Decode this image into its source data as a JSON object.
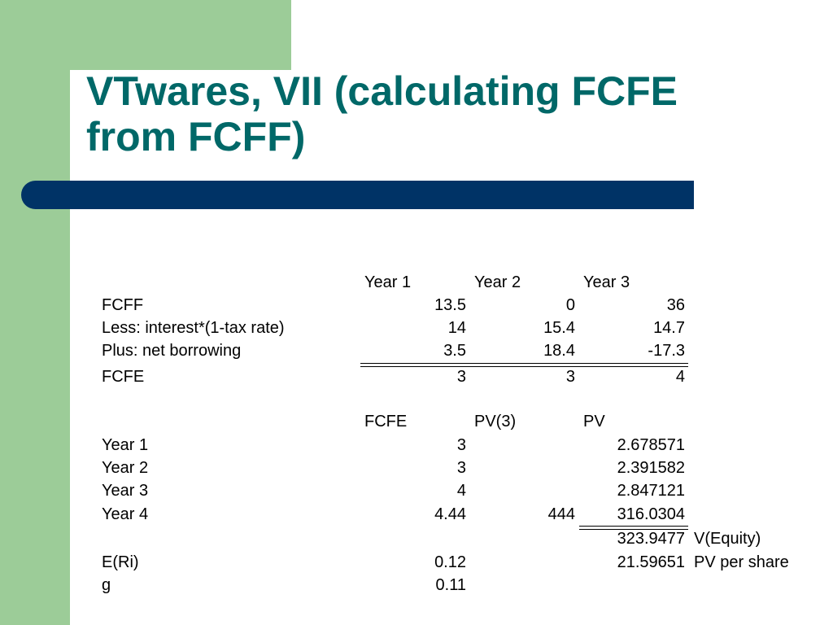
{
  "slide": {
    "title_line1": "VTwares, VII (calculating FCFE",
    "title_line2": "from FCFF)",
    "colors": {
      "title": "#006868",
      "bar": "#003366",
      "band": "#9ccc98"
    }
  },
  "table1": {
    "headers": [
      "Year 1",
      "Year 2",
      "Year 3"
    ],
    "rows": [
      {
        "label": "FCFF",
        "values": [
          "13.5",
          "0",
          "36"
        ]
      },
      {
        "label": "Less: interest*(1-tax rate)",
        "values": [
          "14",
          "15.4",
          "14.7"
        ]
      },
      {
        "label": "Plus: net borrowing",
        "values": [
          "3.5",
          "18.4",
          "-17.3"
        ]
      },
      {
        "label": "FCFE",
        "values": [
          "3",
          "3",
          "4"
        ]
      }
    ]
  },
  "table2": {
    "headers": [
      "FCFE",
      "PV(3)",
      "PV"
    ],
    "rows": [
      {
        "label": "Year 1",
        "fcfe": "3",
        "pv3": "",
        "pv": "2.678571"
      },
      {
        "label": "Year 2",
        "fcfe": "3",
        "pv3": "",
        "pv": "2.391582"
      },
      {
        "label": "Year 3",
        "fcfe": "4",
        "pv3": "",
        "pv": "2.847121"
      },
      {
        "label": "Year 4",
        "fcfe": "4.44",
        "pv3": "444",
        "pv": "316.0304"
      }
    ],
    "total": {
      "value": "323.9477",
      "note": "V(Equity)"
    },
    "extra": [
      {
        "label": "E(Ri)",
        "value": "0.12",
        "pv": "21.59651",
        "note": "PV per share"
      },
      {
        "label": "g",
        "value": "0.11"
      }
    ]
  }
}
